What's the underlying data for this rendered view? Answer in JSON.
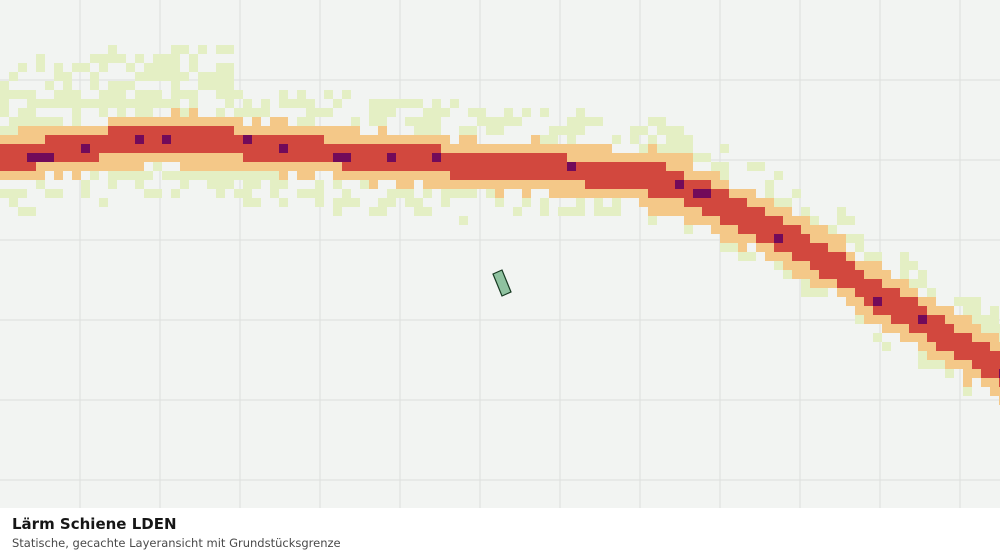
{
  "caption": {
    "title": "Lärm Schiene LDEN",
    "subtitle": "Statische, gecachte Layeransicht mit Grundstücksgrenze"
  },
  "map": {
    "background_color": "#f2f4f2",
    "grid_color": "#dcdedc",
    "noise_classes": [
      {
        "key": "outer",
        "color": "#e4efc4"
      },
      {
        "key": "band2",
        "color": "#f4c888"
      },
      {
        "key": "band3",
        "color": "#d2483e"
      },
      {
        "key": "core",
        "color": "#720a5a"
      }
    ],
    "parcel": {
      "fill": "#8fc2a0",
      "stroke": "#173a22"
    }
  }
}
